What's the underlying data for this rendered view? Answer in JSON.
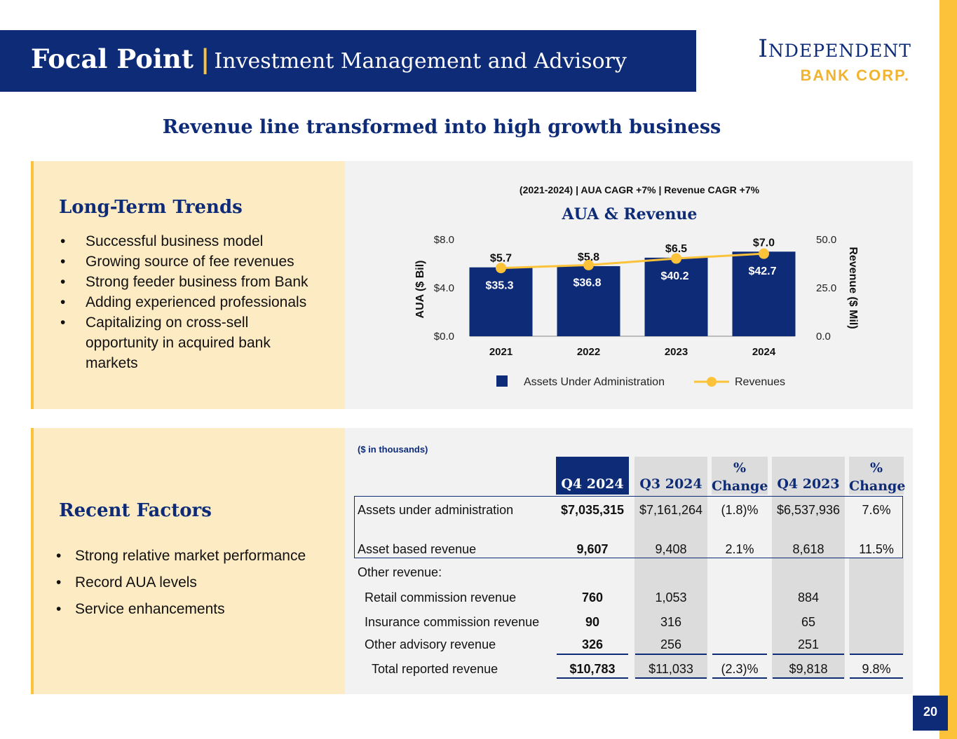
{
  "header": {
    "title": "Focal Point",
    "separator": "|",
    "subtitle": "Investment Management and Advisory"
  },
  "logo": {
    "line1": "Independent",
    "line2": "BANK CORP."
  },
  "tagline": "Revenue line transformed into high growth business",
  "long_term_trends": {
    "heading": "Long-Term Trends",
    "items": [
      "Successful business model",
      "Growing source of fee revenues",
      "Strong feeder business from Bank",
      "Adding experienced professionals",
      "Capitalizing on cross-sell opportunity in acquired bank markets"
    ]
  },
  "recent_factors": {
    "heading": "Recent Factors",
    "items": [
      "Strong relative market performance",
      "Record AUA levels",
      "Service enhancements"
    ]
  },
  "chart_data": {
    "type": "bar",
    "subtitle": "(2021-2024)  |  AUA CAGR +7%  |  Revenue CAGR +7%",
    "title": "AUA & Revenue",
    "categories": [
      "2021",
      "2022",
      "2023",
      "2024"
    ],
    "ylabel": "AUA ($ Bil)",
    "y2label": "Revenue ($ Mil)",
    "ylim": [
      0,
      8
    ],
    "y2lim": [
      0,
      50
    ],
    "yticks": [
      "$0.0",
      "$4.0",
      "$8.0"
    ],
    "y2ticks": [
      "0.0",
      "25.0",
      "50.0"
    ],
    "series": [
      {
        "name": "Assets Under Administration",
        "type": "bar",
        "axis": "left",
        "values": [
          5.7,
          5.8,
          6.5,
          7.0
        ],
        "labels": [
          "$5.7",
          "$5.8",
          "$6.5",
          "$7.0"
        ],
        "color": "#0E2B77"
      },
      {
        "name": "Revenues",
        "type": "line",
        "axis": "right",
        "values": [
          35.3,
          36.8,
          40.2,
          42.7
        ],
        "labels": [
          "$35.3",
          "$36.8",
          "$40.2",
          "$42.7"
        ],
        "color": "#FBC23A"
      }
    ],
    "legend": "bottom",
    "grid": false
  },
  "table": {
    "note": "($ in thousands)",
    "columns": [
      "Q4 2024",
      "Q3 2024",
      "% Change",
      "Q4 2023",
      "% Change"
    ],
    "rows": [
      {
        "label": "Assets under administration",
        "values": [
          "$7,035,315",
          "$7,161,264",
          "(1.8)%",
          "$6,537,936",
          "7.6%"
        ]
      },
      {
        "label": "Asset based revenue",
        "values": [
          "9,607",
          "9,408",
          "2.1%",
          "8,618",
          "11.5%"
        ]
      },
      {
        "label": "Other revenue:",
        "values": [
          "",
          "",
          "",
          "",
          ""
        ]
      },
      {
        "label": "Retail commission revenue",
        "values": [
          "760",
          "1,053",
          "",
          "884",
          ""
        ]
      },
      {
        "label": "Insurance commission revenue",
        "values": [
          "90",
          "316",
          "",
          "65",
          ""
        ]
      },
      {
        "label": "Other advisory revenue",
        "values": [
          "326",
          "256",
          "",
          "251",
          ""
        ]
      },
      {
        "label": "Total reported revenue",
        "values": [
          "$10,783",
          "$11,033",
          "(2.3)%",
          "$9,818",
          "9.8%"
        ]
      }
    ]
  },
  "page_number": "20",
  "colors": {
    "navy": "#0E2B77",
    "gold": "#FBC23A",
    "cream": "#FDEBC4",
    "panel_gray": "#F2F2F2"
  }
}
